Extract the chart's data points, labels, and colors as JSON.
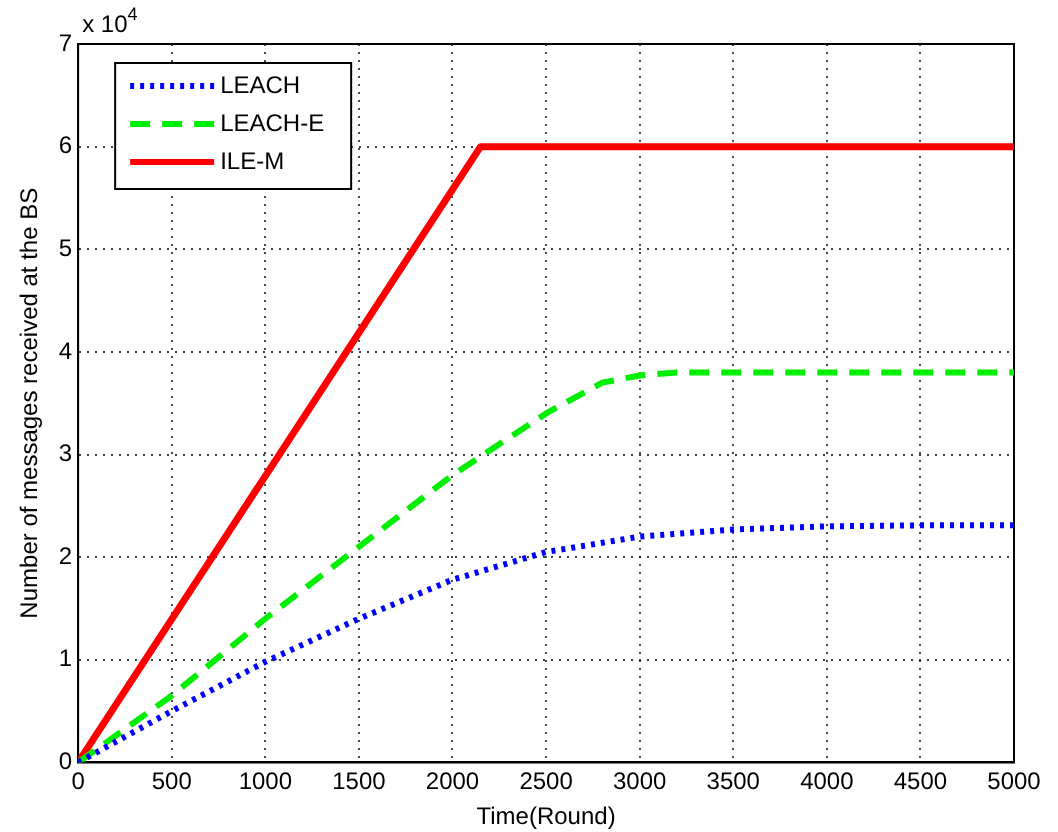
{
  "chart_data": {
    "type": "line",
    "xlabel": "Time(Round)",
    "ylabel": "Number of messages received at the BS",
    "annotations": [
      "x 10$^{4}$"
    ],
    "xlim": [
      0,
      5000
    ],
    "xticks": [
      0,
      500,
      1000,
      1500,
      2000,
      2500,
      3000,
      3500,
      4000,
      4500,
      5000
    ],
    "ylim": [
      0,
      7
    ],
    "yticks": [
      0,
      1,
      2,
      3,
      4,
      5,
      6,
      7
    ],
    "grid": true,
    "legend": "top left",
    "marker": "none",
    "series": [
      {
        "name": "LEACH",
        "color": "#0000ff",
        "line_style": "dotted",
        "x": [
          0,
          500,
          1000,
          1500,
          2000,
          2500,
          3000,
          3500,
          4000,
          4500,
          5000
        ],
        "values": [
          0,
          0.5,
          0.98,
          1.4,
          1.78,
          2.05,
          2.2,
          2.27,
          2.3,
          2.31,
          2.31
        ]
      },
      {
        "name": "LEACH-E",
        "color": "#00ee00",
        "line_style": "dashed",
        "x": [
          0,
          500,
          1000,
          1500,
          2000,
          2500,
          2800,
          3000,
          3200,
          5000
        ],
        "values": [
          0,
          0.65,
          1.4,
          2.1,
          2.8,
          3.4,
          3.7,
          3.77,
          3.8,
          3.8
        ]
      },
      {
        "name": "ILE-M",
        "color": "#ff0000",
        "line_style": "solid",
        "x": [
          0,
          2150,
          5000
        ],
        "values": [
          0,
          6,
          6
        ]
      }
    ]
  }
}
